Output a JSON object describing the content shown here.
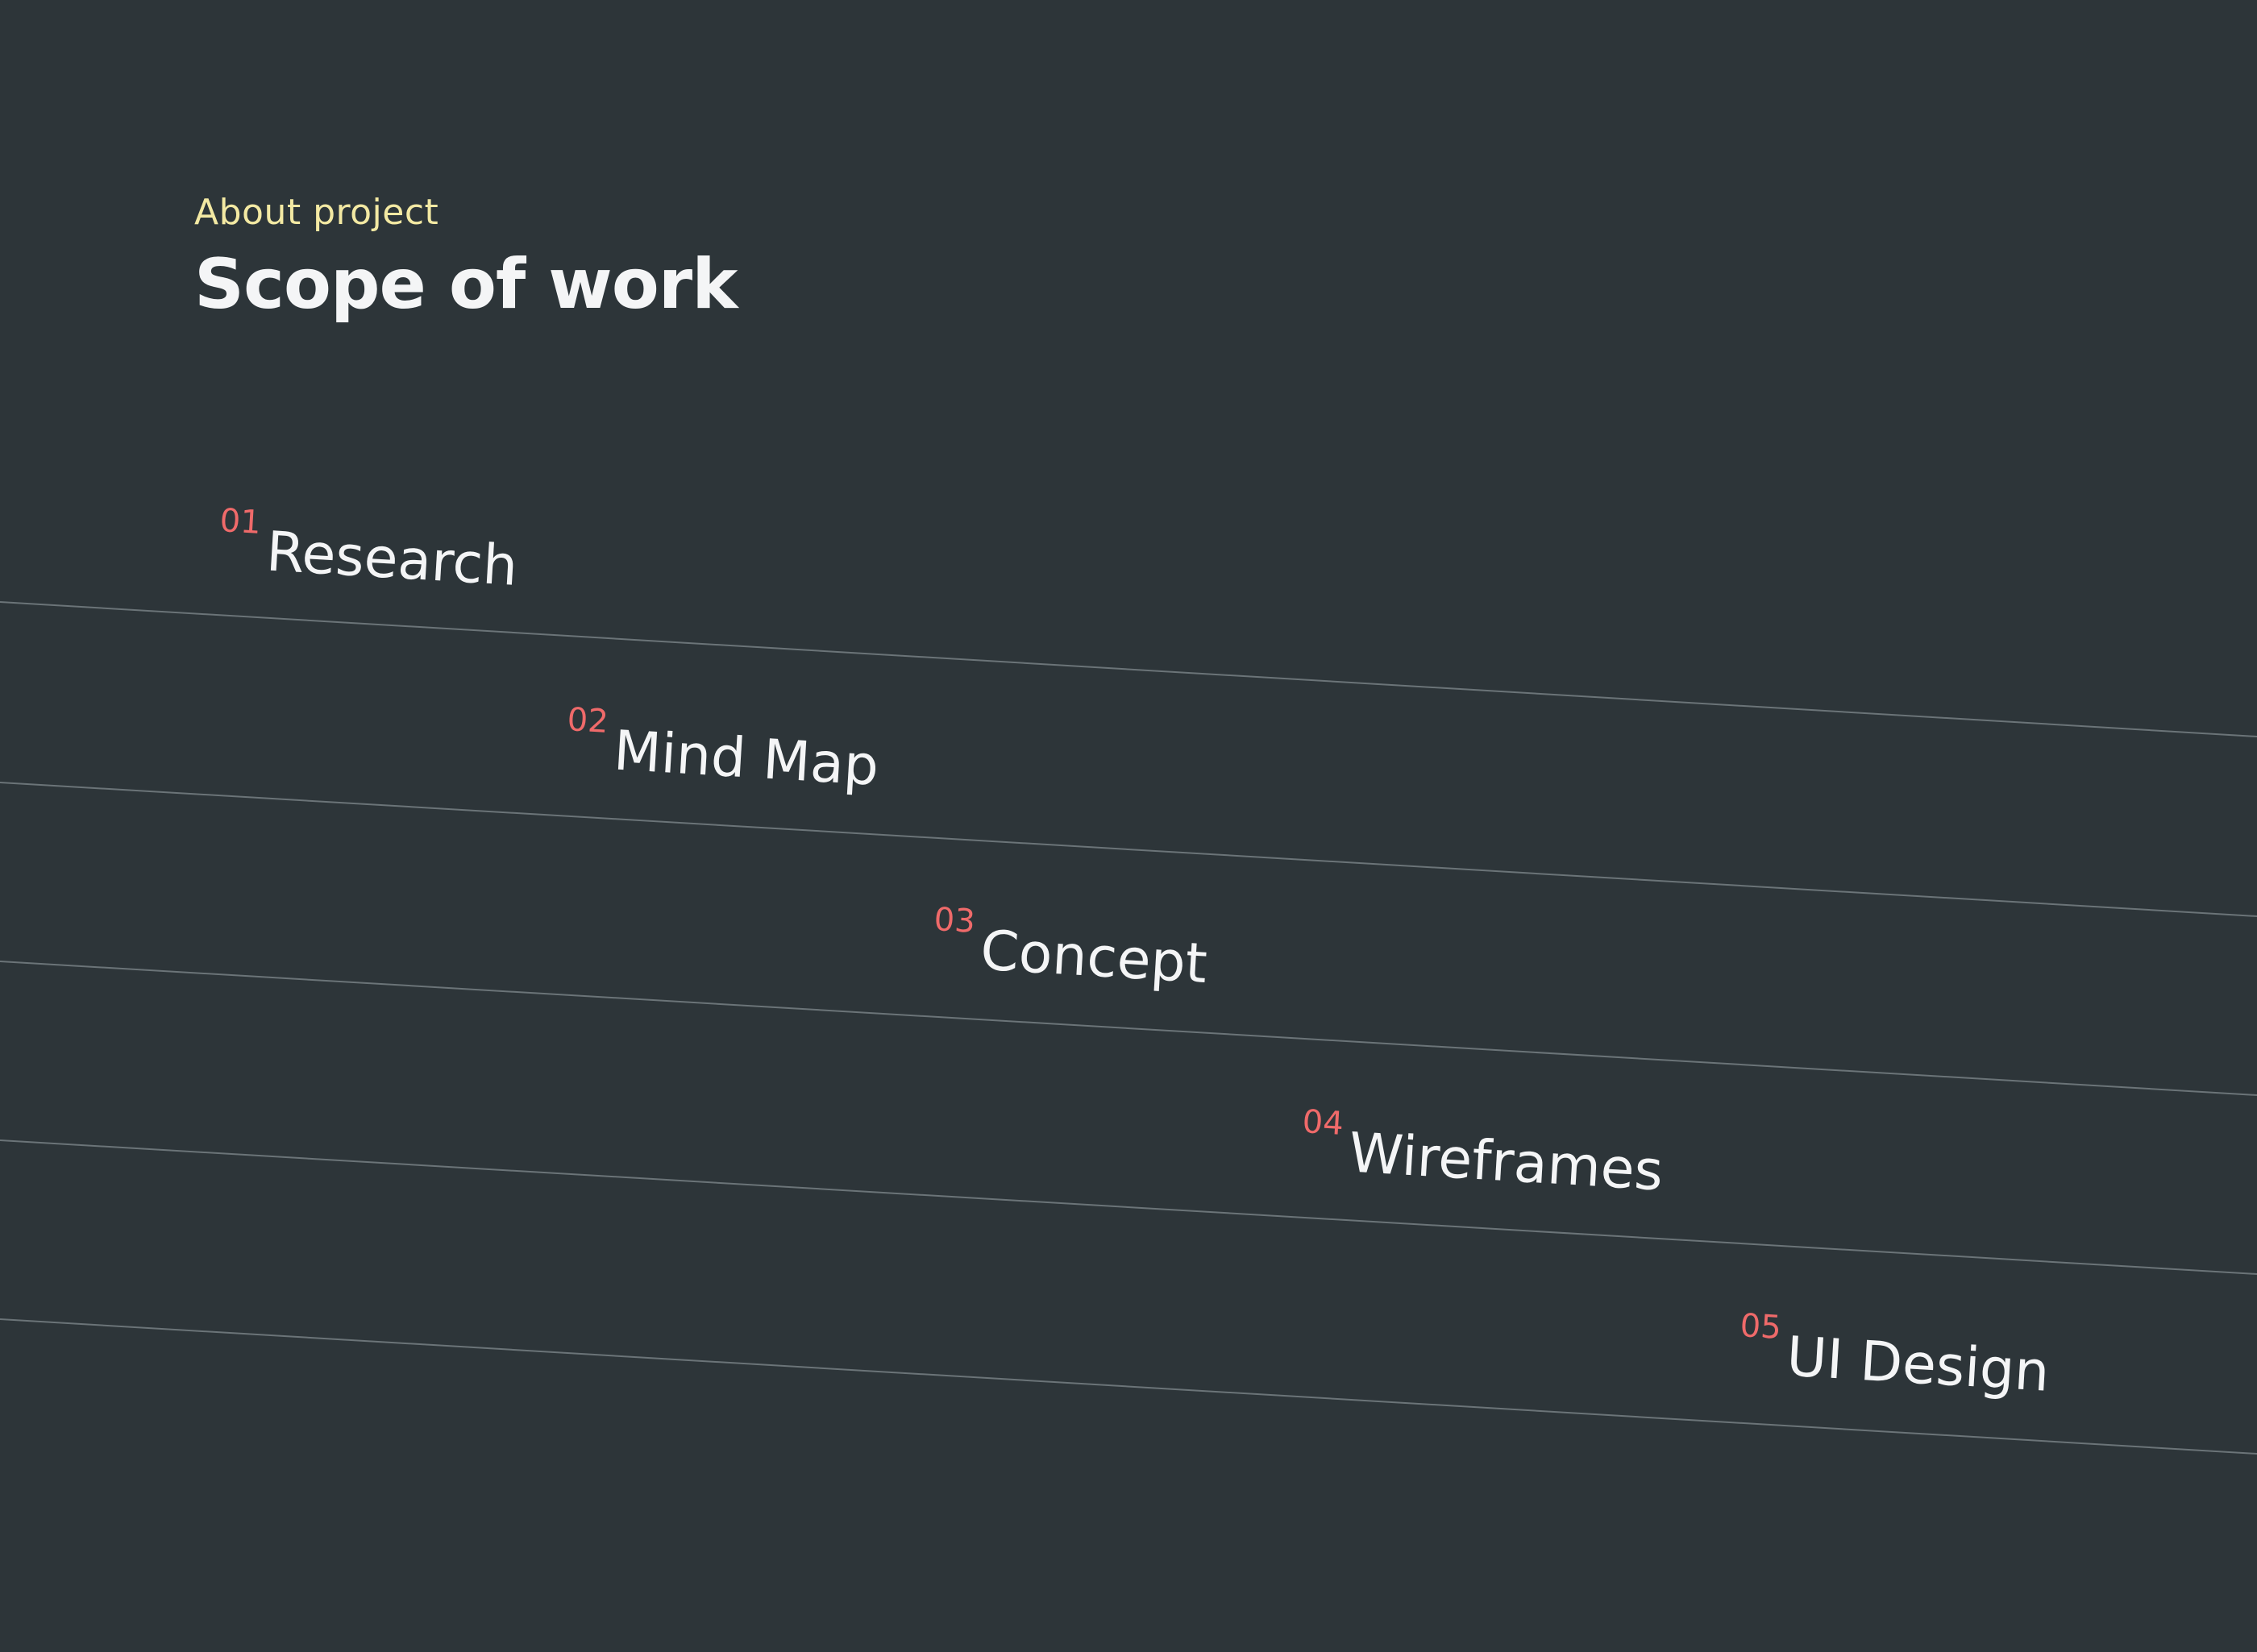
{
  "header": {
    "eyebrow": "About project",
    "title": "Scope of work"
  },
  "colors": {
    "background": "#2d3539",
    "eyebrow": "#f3e9a3",
    "title": "#f4f5f6",
    "number": "#ef6a6a",
    "label": "#f4f5f6",
    "line": "#6b7478"
  },
  "steps": [
    {
      "number": "01",
      "label": "Research"
    },
    {
      "number": "02",
      "label": "Mind Map"
    },
    {
      "number": "03",
      "label": "Concept"
    },
    {
      "number": "04",
      "label": "Wireframes"
    },
    {
      "number": "05",
      "label": "UI Design"
    }
  ]
}
